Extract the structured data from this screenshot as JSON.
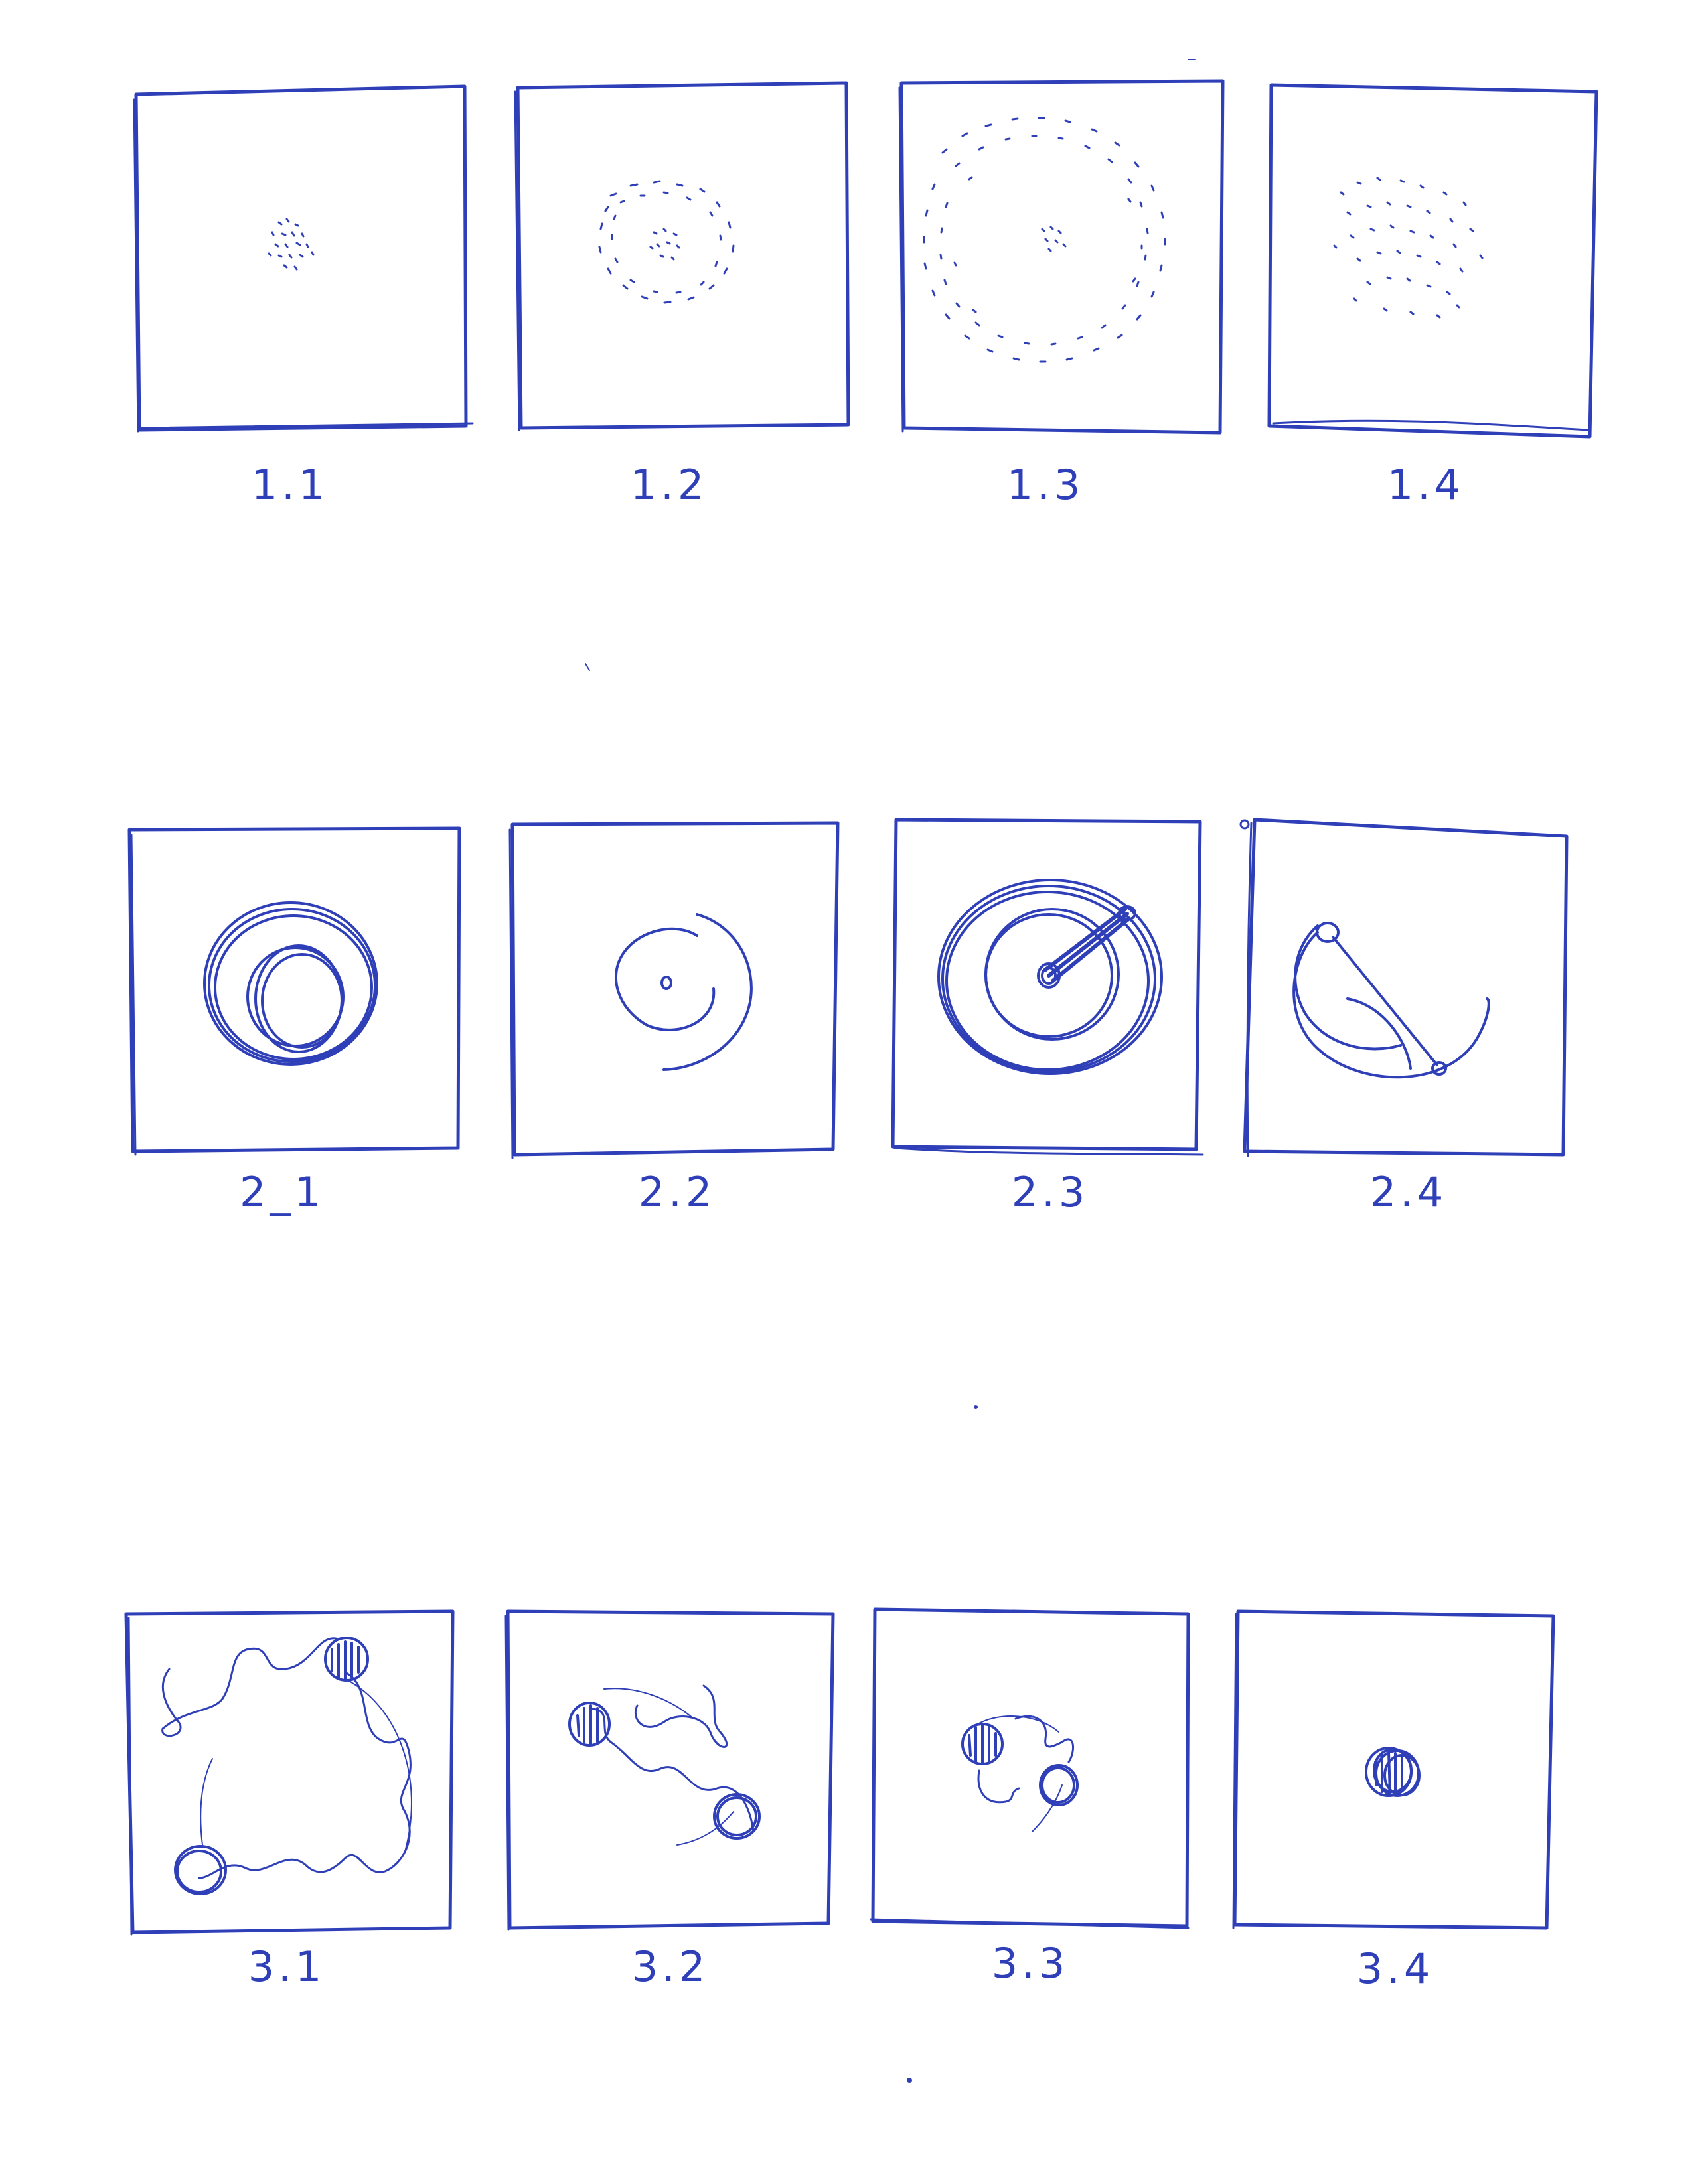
{
  "sheet": {
    "ink_color": "#2f3fb8",
    "paper_color": "#ffffff"
  },
  "rows": [
    {
      "panels": [
        {
          "label": "1.1",
          "content": "dot-cluster"
        },
        {
          "label": "1.2",
          "content": "dot-ring-with-center-cluster"
        },
        {
          "label": "1.3",
          "content": "large-dot-ring-with-small-center"
        },
        {
          "label": "1.4",
          "content": "scattered-dot-cloud"
        }
      ]
    },
    {
      "panels": [
        {
          "label": "2_1",
          "content": "concentric-circles"
        },
        {
          "label": "2.2",
          "content": "dot-with-spiral-arcs"
        },
        {
          "label": "2.3",
          "content": "circles-with-radial-rod"
        },
        {
          "label": "2.4",
          "content": "arcs-with-connecting-line"
        }
      ]
    },
    {
      "panels": [
        {
          "label": "3.1",
          "content": "two-bodies-with-wavy-path"
        },
        {
          "label": "3.2",
          "content": "two-bodies-closer"
        },
        {
          "label": "3.3",
          "content": "two-bodies-nearly-touching"
        },
        {
          "label": "3.4",
          "content": "merged-bodies"
        }
      ]
    }
  ]
}
